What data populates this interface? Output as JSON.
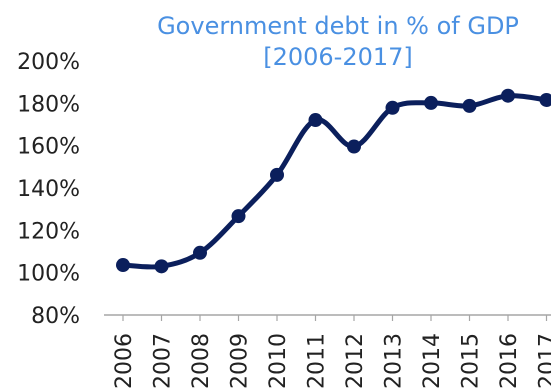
{
  "chart_data": {
    "type": "line",
    "title": "Government debt in % of GDP",
    "subtitle": "[2006-2017]",
    "xlabel": "",
    "ylabel": "",
    "categories": [
      "2006",
      "2007",
      "2008",
      "2009",
      "2010",
      "2011",
      "2012",
      "2013",
      "2014",
      "2015",
      "2016",
      "2017"
    ],
    "series": [
      {
        "values": [
          103.6,
          103.0,
          109.4,
          126.7,
          146.2,
          172.1,
          159.6,
          177.9,
          180.2,
          178.8,
          183.6,
          181.6
        ]
      }
    ],
    "ylim": [
      80,
      200
    ],
    "yticks": [
      "80%",
      "100%",
      "120%",
      "140%",
      "160%",
      "180%",
      "200%"
    ],
    "grid": false,
    "legend": "none",
    "colors": {
      "line": "#0b1f5c",
      "title": "#4a90e2",
      "text": "#222222",
      "axis": "#a6a6a6"
    }
  }
}
